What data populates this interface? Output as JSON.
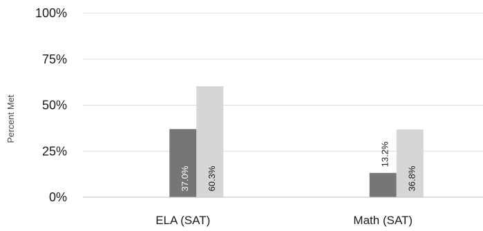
{
  "chart_data": {
    "type": "bar",
    "title": "",
    "xlabel": "",
    "ylabel": "Percent Met",
    "categories": [
      "ELA (SAT)",
      "Math (SAT)"
    ],
    "ylim": [
      0,
      100
    ],
    "yticks": [
      "0%",
      "25%",
      "50%",
      "75%",
      "100%"
    ],
    "grid": true,
    "legend": "none",
    "series": [
      {
        "values": [
          0,
          0
        ],
        "data_labels": [
          "",
          ""
        ],
        "color": "#ffffff"
      },
      {
        "values": [
          37.0,
          13.2
        ],
        "data_labels": [
          "37.0%",
          "13.2%"
        ],
        "color": "#767676"
      },
      {
        "values": [
          60.3,
          36.8
        ],
        "data_labels": [
          "60.3%",
          "36.8%"
        ],
        "color": "#d6d6d6"
      }
    ]
  }
}
